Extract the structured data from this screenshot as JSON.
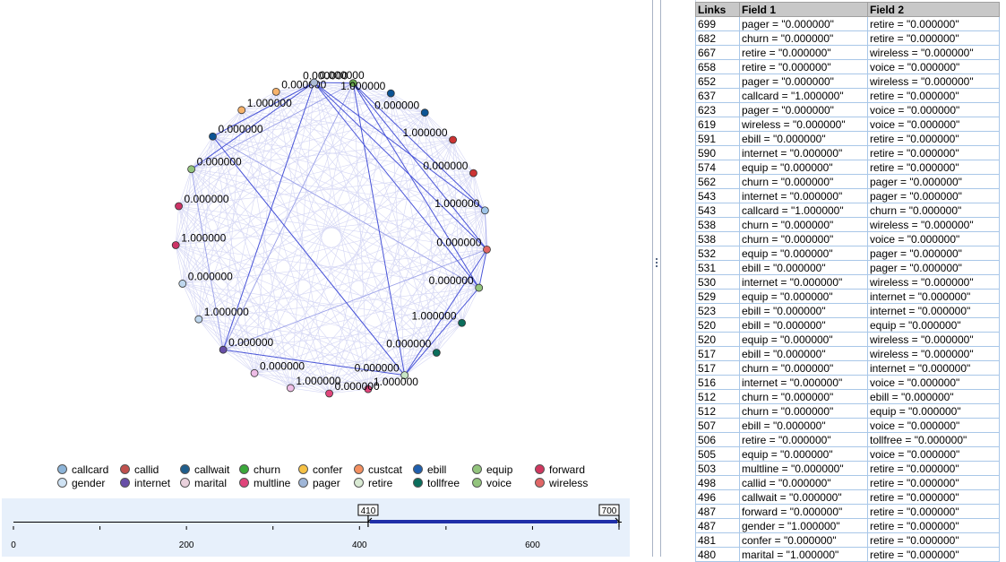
{
  "nodes": [
    {
      "label": "0.000000",
      "color": "#6aa84f"
    },
    {
      "label": "1.000000",
      "color": "#0b5394"
    },
    {
      "label": "0.000000",
      "color": "#0b5394"
    },
    {
      "label": "1.000000",
      "color": "#cc3333"
    },
    {
      "label": "0.000000",
      "color": "#cc3333"
    },
    {
      "label": "1.000000",
      "color": "#9fc5e8"
    },
    {
      "label": "0.000000",
      "color": "#e06666"
    },
    {
      "label": "0.000000",
      "color": "#93c47d"
    },
    {
      "label": "1.000000",
      "color": "#0b6e5c"
    },
    {
      "label": "0.000000",
      "color": "#0b6e5c"
    },
    {
      "label": "0.000000",
      "color": "#c9e6c6"
    },
    {
      "label": "1.000000",
      "color": "#e0457b"
    },
    {
      "label": "0.000000",
      "color": "#e0457b"
    },
    {
      "label": "1.000000",
      "color": "#eebde6"
    },
    {
      "label": "0.000000",
      "color": "#eebde6"
    },
    {
      "label": "0.000000",
      "color": "#674ea7"
    },
    {
      "label": "1.000000",
      "color": "#bfd7ee"
    },
    {
      "label": "0.000000",
      "color": "#bfd7ee"
    },
    {
      "label": "1.000000",
      "color": "#cc3366"
    },
    {
      "label": "0.000000",
      "color": "#cc3366"
    },
    {
      "label": "0.000000",
      "color": "#93c47d"
    },
    {
      "label": "0.000000",
      "color": "#0b5394"
    },
    {
      "label": "1.000000",
      "color": "#f6b26b"
    },
    {
      "label": "0.000000",
      "color": "#f6b26b"
    },
    {
      "label": "0.000000",
      "color": "#adbdd8"
    }
  ],
  "legend": {
    "row1": [
      {
        "label": "callcard",
        "color": "#8db4d8"
      },
      {
        "label": "callid",
        "color": "#c0504d"
      },
      {
        "label": "callwait",
        "color": "#1f5e8c"
      },
      {
        "label": "churn",
        "color": "#3aa83a"
      },
      {
        "label": "confer",
        "color": "#f6c144"
      },
      {
        "label": "custcat",
        "color": "#f49060"
      },
      {
        "label": "ebill",
        "color": "#1f5fae"
      },
      {
        "label": "equip",
        "color": "#93c47d"
      },
      {
        "label": "forward",
        "color": "#d0375f"
      }
    ],
    "row2": [
      {
        "label": "gender",
        "color": "#cfe2f3"
      },
      {
        "label": "internet",
        "color": "#674ea7"
      },
      {
        "label": "marital",
        "color": "#ead1dc"
      },
      {
        "label": "multline",
        "color": "#e0457b"
      },
      {
        "label": "pager",
        "color": "#9fb6d8"
      },
      {
        "label": "retire",
        "color": "#d9ead3"
      },
      {
        "label": "tollfree",
        "color": "#0b6e5c"
      },
      {
        "label": "voice",
        "color": "#93c47d"
      },
      {
        "label": "wireless",
        "color": "#e06666"
      }
    ]
  },
  "slider": {
    "ticks": [
      "0",
      "200",
      "400",
      "600"
    ],
    "low_label": "410",
    "high_label": "700",
    "range": [
      0,
      700
    ],
    "low": 410,
    "high": 700
  },
  "table": {
    "headers": [
      "Links",
      "Field 1",
      "Field 2"
    ],
    "rows": [
      [
        "699",
        "pager = \"0.000000\"",
        "retire = \"0.000000\""
      ],
      [
        "682",
        "churn = \"0.000000\"",
        "retire = \"0.000000\""
      ],
      [
        "667",
        "retire = \"0.000000\"",
        "wireless = \"0.000000\""
      ],
      [
        "658",
        "retire = \"0.000000\"",
        "voice = \"0.000000\""
      ],
      [
        "652",
        "pager = \"0.000000\"",
        "wireless = \"0.000000\""
      ],
      [
        "637",
        "callcard = \"1.000000\"",
        "retire = \"0.000000\""
      ],
      [
        "623",
        "pager = \"0.000000\"",
        "voice = \"0.000000\""
      ],
      [
        "619",
        "wireless = \"0.000000\"",
        "voice = \"0.000000\""
      ],
      [
        "591",
        "ebill = \"0.000000\"",
        "retire = \"0.000000\""
      ],
      [
        "590",
        "internet = \"0.000000\"",
        "retire = \"0.000000\""
      ],
      [
        "574",
        "equip = \"0.000000\"",
        "retire = \"0.000000\""
      ],
      [
        "562",
        "churn = \"0.000000\"",
        "pager = \"0.000000\""
      ],
      [
        "543",
        "internet = \"0.000000\"",
        "pager = \"0.000000\""
      ],
      [
        "543",
        "callcard = \"1.000000\"",
        "churn = \"0.000000\""
      ],
      [
        "538",
        "churn = \"0.000000\"",
        "wireless = \"0.000000\""
      ],
      [
        "538",
        "churn = \"0.000000\"",
        "voice = \"0.000000\""
      ],
      [
        "532",
        "equip = \"0.000000\"",
        "pager = \"0.000000\""
      ],
      [
        "531",
        "ebill = \"0.000000\"",
        "pager = \"0.000000\""
      ],
      [
        "530",
        "internet = \"0.000000\"",
        "wireless = \"0.000000\""
      ],
      [
        "529",
        "equip = \"0.000000\"",
        "internet = \"0.000000\""
      ],
      [
        "523",
        "ebill = \"0.000000\"",
        "internet = \"0.000000\""
      ],
      [
        "520",
        "ebill = \"0.000000\"",
        "equip = \"0.000000\""
      ],
      [
        "520",
        "equip = \"0.000000\"",
        "wireless = \"0.000000\""
      ],
      [
        "517",
        "ebill = \"0.000000\"",
        "wireless = \"0.000000\""
      ],
      [
        "517",
        "churn = \"0.000000\"",
        "internet = \"0.000000\""
      ],
      [
        "516",
        "internet = \"0.000000\"",
        "voice = \"0.000000\""
      ],
      [
        "512",
        "churn = \"0.000000\"",
        "ebill = \"0.000000\""
      ],
      [
        "512",
        "churn = \"0.000000\"",
        "equip = \"0.000000\""
      ],
      [
        "507",
        "ebill = \"0.000000\"",
        "voice = \"0.000000\""
      ],
      [
        "506",
        "retire = \"0.000000\"",
        "tollfree = \"0.000000\""
      ],
      [
        "505",
        "equip = \"0.000000\"",
        "voice = \"0.000000\""
      ],
      [
        "503",
        "multline = \"0.000000\"",
        "retire = \"0.000000\""
      ],
      [
        "498",
        "callid = \"0.000000\"",
        "retire = \"0.000000\""
      ],
      [
        "496",
        "callwait = \"0.000000\"",
        "retire = \"0.000000\""
      ],
      [
        "487",
        "forward = \"0.000000\"",
        "retire = \"0.000000\""
      ],
      [
        "487",
        "gender = \"1.000000\"",
        "retire = \"0.000000\""
      ],
      [
        "481",
        "confer = \"0.000000\"",
        "retire = \"0.000000\""
      ],
      [
        "480",
        "marital = \"1.000000\"",
        "retire = \"0.000000\""
      ]
    ]
  }
}
